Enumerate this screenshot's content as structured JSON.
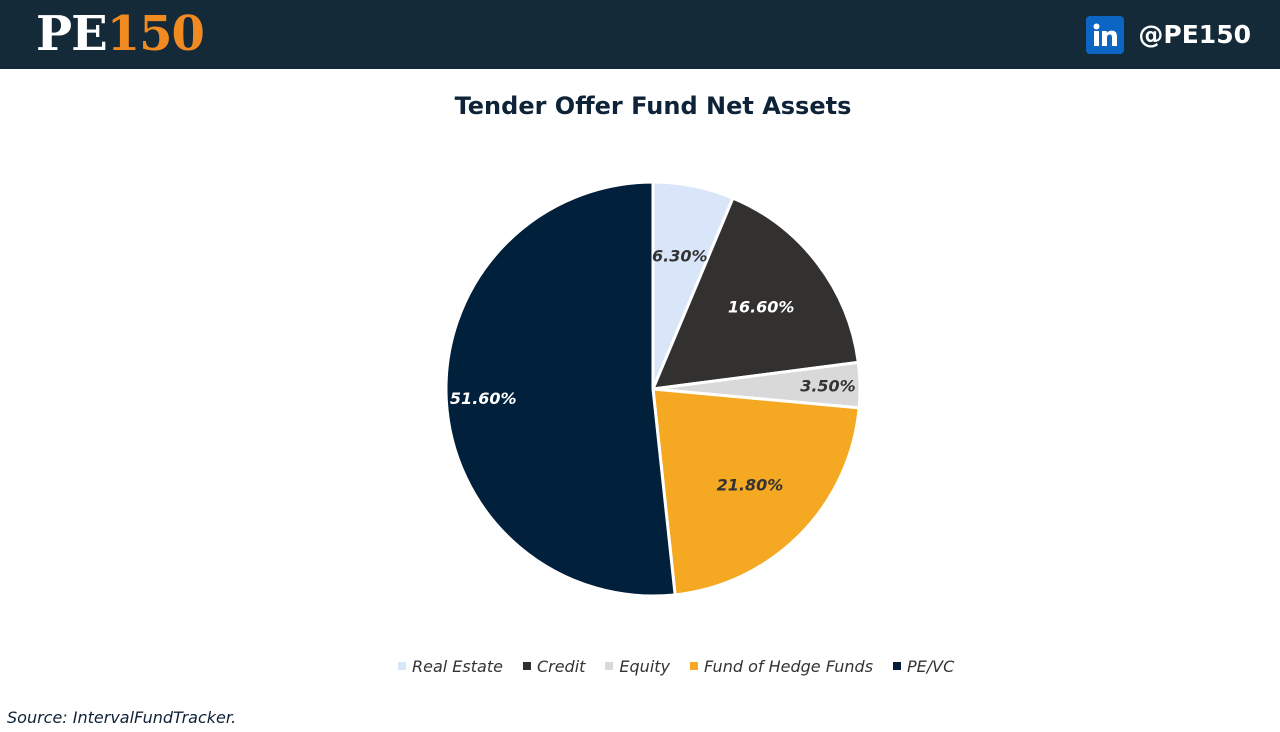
{
  "header": {
    "logo_text_pe": "PE",
    "logo_text_num": "150",
    "social_icon": "linkedin-icon",
    "handle": "@PE150"
  },
  "colors": {
    "header_bg": "#152a38",
    "logo_accent": "#f28a22",
    "linkedin_blue": "#0a66c2"
  },
  "chart_data": {
    "type": "pie",
    "title": "Tender Offer Fund Net Assets",
    "categories": [
      "Real Estate",
      "Credit",
      "Equity",
      "Fund of Hedge Funds",
      "PE/VC"
    ],
    "values": [
      6.3,
      16.6,
      3.5,
      21.8,
      51.6
    ],
    "data_labels": [
      "6.30%",
      "16.60%",
      "3.50%",
      "21.80%",
      "51.60%"
    ],
    "colors": [
      "#d9e6fa",
      "#333130",
      "#d9d9d9",
      "#f5a822",
      "#00203c"
    ],
    "label_colors": [
      "#333333",
      "#ffffff",
      "#333333",
      "#333333",
      "#ffffff"
    ],
    "start_angle": "12 o'clock",
    "direction": "clockwise",
    "legend_position": "bottom"
  },
  "source": "Source: IntervalFundTracker."
}
